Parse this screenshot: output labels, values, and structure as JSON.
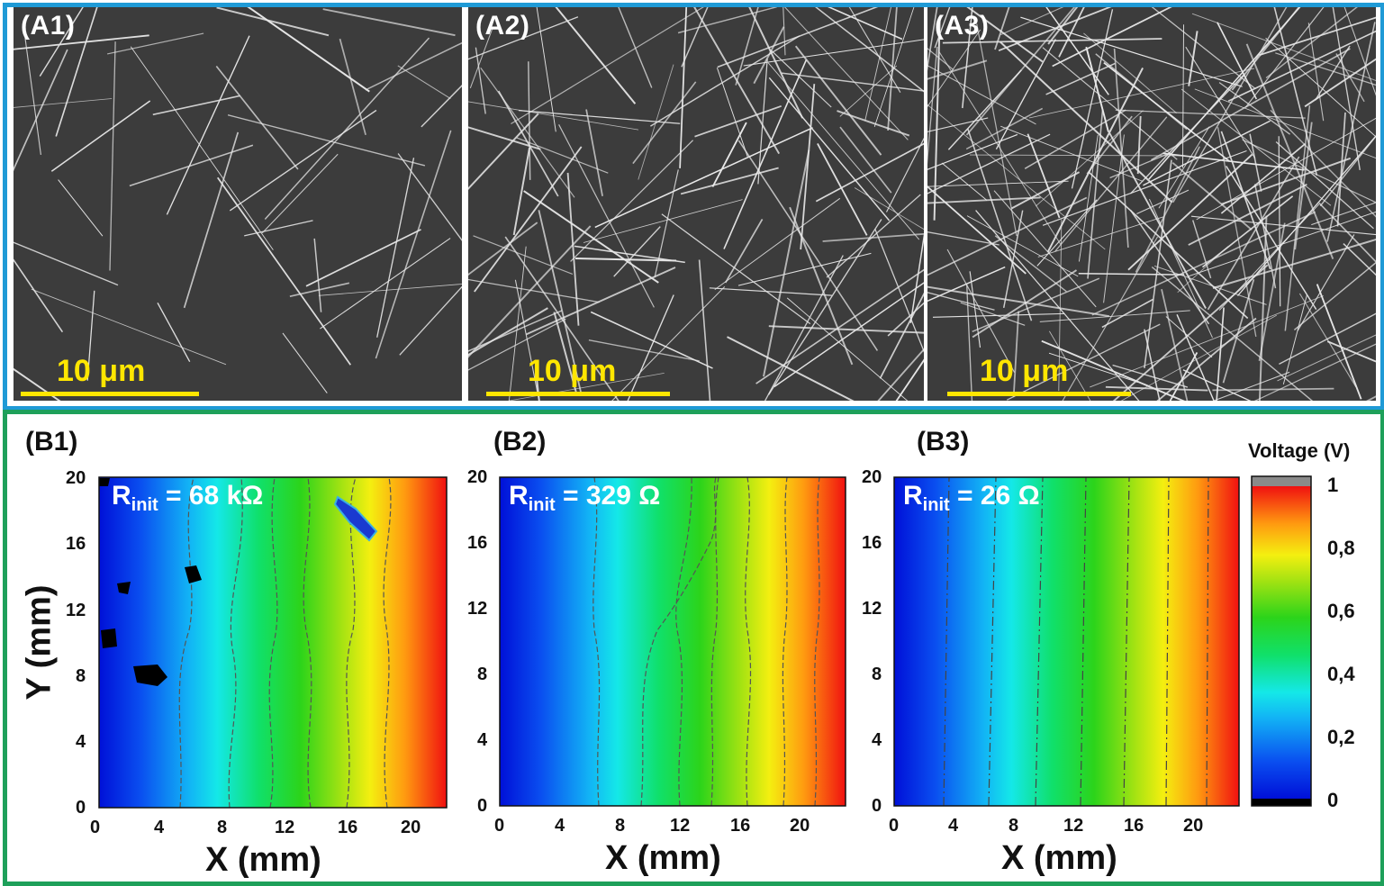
{
  "sem_panels": [
    {
      "label": "(A1)",
      "scale": "10 μm"
    },
    {
      "label": "(A2)",
      "scale": "10 μm"
    },
    {
      "label": "(A3)",
      "scale": "10 μm"
    }
  ],
  "maps": [
    {
      "label": "(B1)",
      "r_symbol": "R",
      "r_sub": "init",
      "r_value": "= 68 kΩ"
    },
    {
      "label": "(B2)",
      "r_symbol": "R",
      "r_sub": "init",
      "r_value": "= 329 Ω"
    },
    {
      "label": "(B3)",
      "r_symbol": "R",
      "r_sub": "init",
      "r_value": "= 26 Ω"
    }
  ],
  "x_axis": {
    "title": "X (mm)",
    "ticks": [
      "0",
      "4",
      "8",
      "12",
      "16",
      "20"
    ]
  },
  "y_axis": {
    "title": "Y (mm)",
    "ticks": [
      "0",
      "4",
      "8",
      "12",
      "16",
      "20"
    ]
  },
  "colorbar": {
    "title": "Voltage (V)",
    "ticks": [
      "1",
      "0,8",
      "0,6",
      "0,4",
      "0,2",
      "0"
    ]
  },
  "colors": {
    "frame_top": "#1f9ad6",
    "frame_bottom": "#1ea05a",
    "scale_bar": "#ffe600"
  }
}
